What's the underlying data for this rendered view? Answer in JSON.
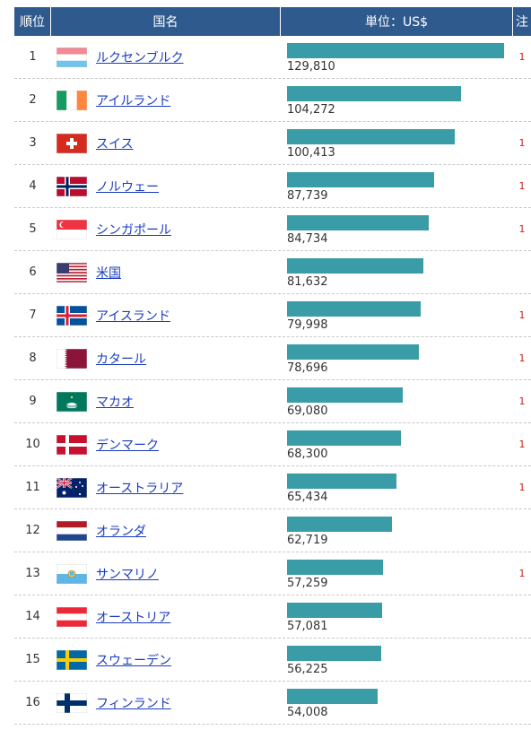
{
  "header": {
    "rank": "順位",
    "name": "国名",
    "value": "単位：US$",
    "note": "注"
  },
  "colors": {
    "header_bg": "#2f5a8e",
    "bar": "#3a9ca6",
    "link": "#1a3cbf",
    "note": "#cc2222"
  },
  "chart_data": {
    "type": "bar",
    "categories": [
      "ルクセンブルク",
      "アイルランド",
      "スイス",
      "ノルウェー",
      "シンガポール",
      "米国",
      "アイスランド",
      "カタール",
      "マカオ",
      "デンマーク",
      "オーストラリア",
      "オランダ",
      "サンマリノ",
      "オーストリア",
      "スウェーデン",
      "フィンランド"
    ],
    "values": [
      129810,
      104272,
      100413,
      87739,
      84734,
      81632,
      79998,
      78696,
      69080,
      68300,
      65434,
      62719,
      57259,
      57081,
      56225,
      54008
    ],
    "ylabel": "単位：US$",
    "xlim": [
      0,
      132000
    ]
  },
  "rows": [
    {
      "rank": "1",
      "name": "ルクセンブルク",
      "value_label": "129,810",
      "note": "1",
      "flag": "luxembourg-flag"
    },
    {
      "rank": "2",
      "name": "アイルランド",
      "value_label": "104,272",
      "note": "",
      "flag": "ireland-flag"
    },
    {
      "rank": "3",
      "name": "スイス",
      "value_label": "100,413",
      "note": "1",
      "flag": "switzerland-flag"
    },
    {
      "rank": "4",
      "name": "ノルウェー",
      "value_label": "87,739",
      "note": "1",
      "flag": "norway-flag"
    },
    {
      "rank": "5",
      "name": "シンガポール",
      "value_label": "84,734",
      "note": "1",
      "flag": "singapore-flag"
    },
    {
      "rank": "6",
      "name": "米国",
      "value_label": "81,632",
      "note": "",
      "flag": "usa-flag"
    },
    {
      "rank": "7",
      "name": "アイスランド",
      "value_label": "79,998",
      "note": "1",
      "flag": "iceland-flag"
    },
    {
      "rank": "8",
      "name": "カタール",
      "value_label": "78,696",
      "note": "1",
      "flag": "qatar-flag"
    },
    {
      "rank": "9",
      "name": "マカオ",
      "value_label": "69,080",
      "note": "1",
      "flag": "macau-flag"
    },
    {
      "rank": "10",
      "name": "デンマーク",
      "value_label": "68,300",
      "note": "1",
      "flag": "denmark-flag"
    },
    {
      "rank": "11",
      "name": "オーストラリア",
      "value_label": "65,434",
      "note": "1",
      "flag": "australia-flag"
    },
    {
      "rank": "12",
      "name": "オランダ",
      "value_label": "62,719",
      "note": "",
      "flag": "netherlands-flag"
    },
    {
      "rank": "13",
      "name": "サンマリノ",
      "value_label": "57,259",
      "note": "1",
      "flag": "san-marino-flag"
    },
    {
      "rank": "14",
      "name": "オーストリア",
      "value_label": "57,081",
      "note": "",
      "flag": "austria-flag"
    },
    {
      "rank": "15",
      "name": "スウェーデン",
      "value_label": "56,225",
      "note": "",
      "flag": "sweden-flag"
    },
    {
      "rank": "16",
      "name": "フィンランド",
      "value_label": "54,008",
      "note": "",
      "flag": "finland-flag"
    }
  ]
}
